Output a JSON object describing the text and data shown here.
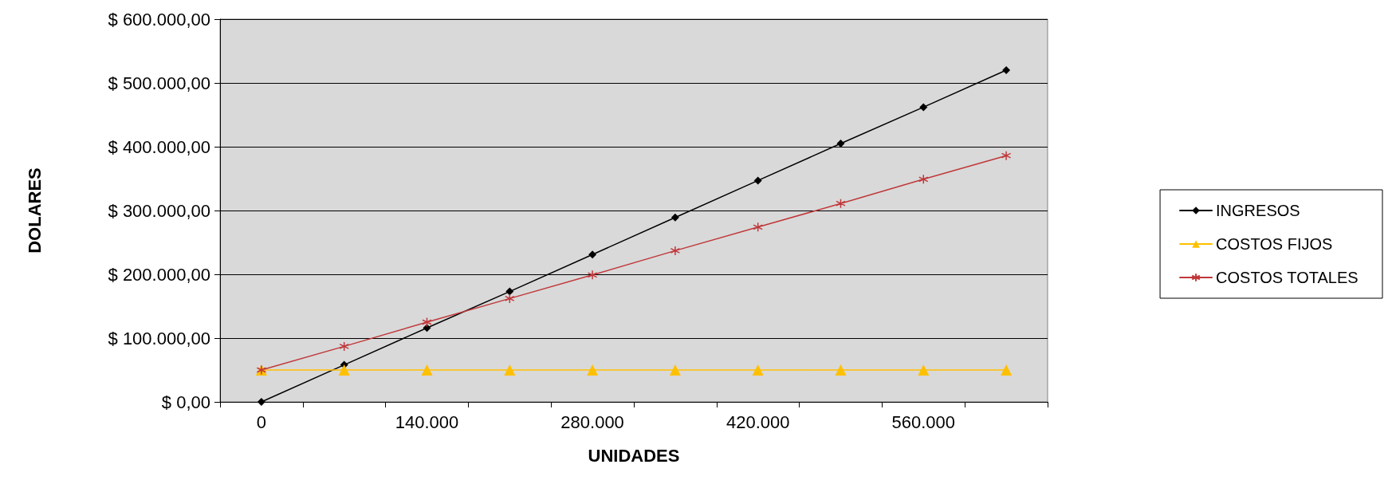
{
  "chart_data": {
    "type": "line",
    "xlabel": "UNIDADES",
    "ylabel": "DOLARES",
    "categories": [
      "0",
      null,
      "140.000",
      null,
      "280.000",
      null,
      "420.000",
      null,
      "560.000",
      null
    ],
    "series": [
      {
        "name": "INGRESOS",
        "color": "#000000",
        "marker": "diamond",
        "values": [
          0,
          58000,
          116000,
          173000,
          231000,
          289000,
          347000,
          405000,
          462000,
          520000
        ]
      },
      {
        "name": "COSTOS FIJOS",
        "color": "#ffc000",
        "marker": "triangle",
        "values": [
          50000,
          50000,
          50000,
          50000,
          50000,
          50000,
          50000,
          50000,
          50000,
          50000
        ]
      },
      {
        "name": "COSTOS TOTALES",
        "color": "#c0383a",
        "marker": "cross",
        "values": [
          50000,
          87000,
          125000,
          162000,
          199000,
          237000,
          274000,
          311000,
          349000,
          386000
        ]
      }
    ],
    "ylim": [
      0,
      600000
    ],
    "yticks": [
      {
        "value": 0,
        "label": "$ 0,00"
      },
      {
        "value": 100000,
        "label": "$ 100.000,00"
      },
      {
        "value": 200000,
        "label": "$ 200.000,00"
      },
      {
        "value": 300000,
        "label": "$ 300.000,00"
      },
      {
        "value": 400000,
        "label": "$ 400.000,00"
      },
      {
        "value": 500000,
        "label": "$ 500.000,00"
      },
      {
        "value": 600000,
        "label": "$ 600.000,00"
      }
    ],
    "grid": "y",
    "legend": "right",
    "line_style": "solid"
  }
}
